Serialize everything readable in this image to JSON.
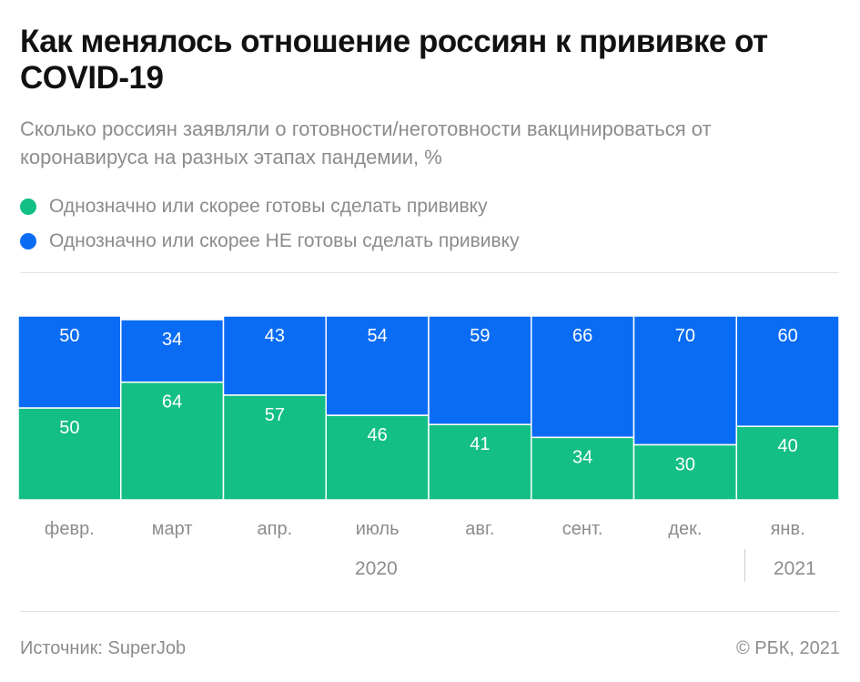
{
  "title": "Как менялось отношение россиян к прививке от COVID-19",
  "subtitle": "Сколько россиян заявляли о готовности/неготовности вакцинироваться от коронавируса на разных этапах пандемии, %",
  "colors": {
    "ready": "#13bf84",
    "not_ready": "#0a6cf5"
  },
  "chart_data": {
    "type": "bar",
    "stacked": true,
    "ylim": [
      0,
      100
    ],
    "categories": [
      "февр.",
      "март",
      "апр.",
      "июль",
      "авг.",
      "сент.",
      "дек.",
      "янв."
    ],
    "series": [
      {
        "name": "Однозначно или скорее готовы сделать прививку",
        "color": "#13bf84",
        "values": [
          50,
          64,
          57,
          46,
          41,
          34,
          30,
          40
        ]
      },
      {
        "name": "Однозначно или скорее НЕ готовы сделать прививку",
        "color": "#0a6cf5",
        "values": [
          50,
          34,
          43,
          54,
          59,
          66,
          70,
          60
        ]
      }
    ],
    "years": [
      "2020",
      "2021"
    ]
  },
  "footer": {
    "source": "Источник: SuperJob",
    "copyright": "© РБК, 2021"
  }
}
